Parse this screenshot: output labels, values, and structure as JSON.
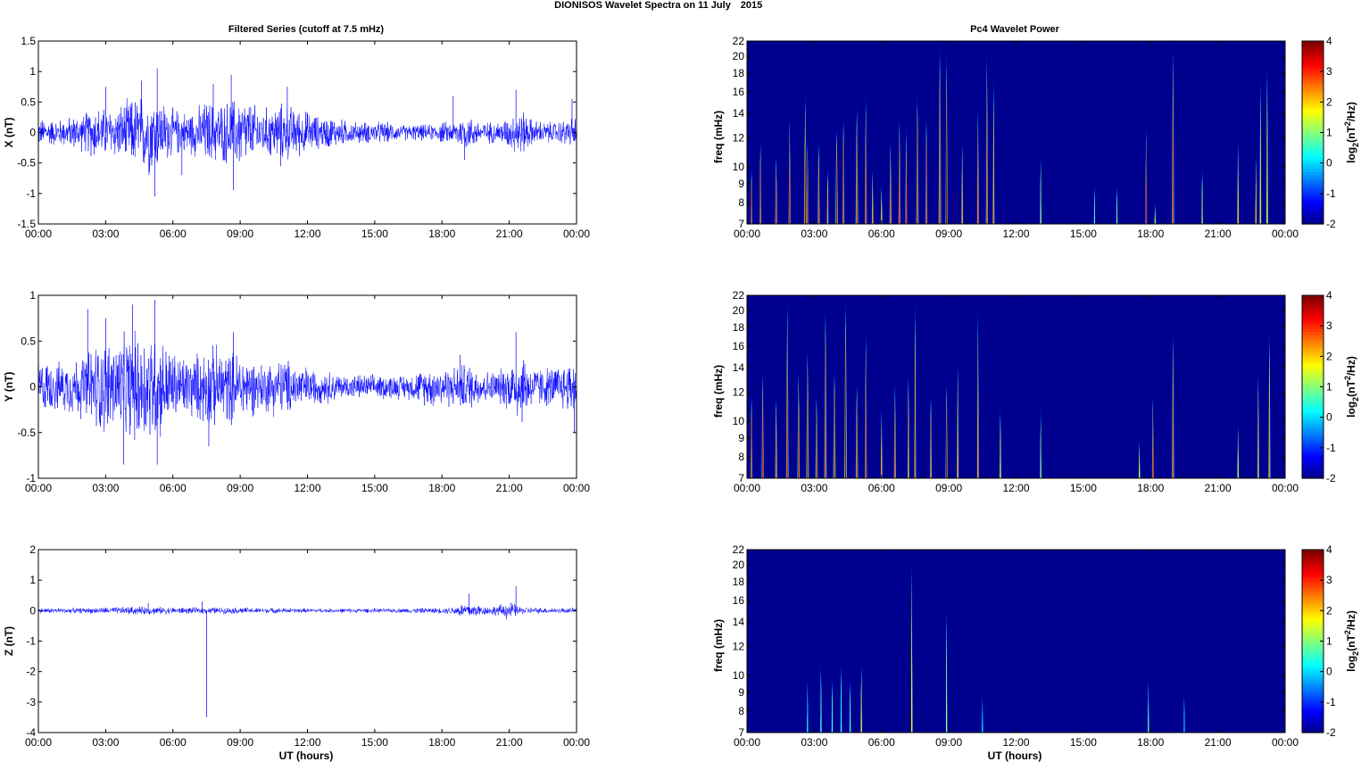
{
  "figure": {
    "title_main": "DIONISOS Wavelet Spectra on 11 July",
    "title_year": "2015",
    "left_title": "Filtered Series (cutoff at 7.5 mHz)",
    "right_title": "Pc4 Wavelet Power",
    "xlabel": "UT (hours)"
  },
  "colors": {
    "trace": "#0000ff",
    "background": "#00008f",
    "axes": "#000000"
  },
  "chart_data": [
    {
      "type": "line",
      "name": "X",
      "ylabel": "X (nT)",
      "xticks": [
        "00:00",
        "03:00",
        "06:00",
        "09:00",
        "12:00",
        "15:00",
        "18:00",
        "21:00",
        "00:00"
      ],
      "xlim_hours": [
        0,
        24
      ],
      "ylim": [
        -1.5,
        1.5
      ],
      "yticks": [
        "1.5",
        "1",
        "0.5",
        "0",
        "-0.5",
        "-1",
        "-1.5"
      ],
      "ytick_values": [
        1.5,
        1,
        0.5,
        0,
        -0.5,
        -1,
        -1.5
      ],
      "envelope_hours": [
        0,
        0.5,
        1,
        1.5,
        2,
        2.5,
        3,
        3.5,
        4,
        4.5,
        5,
        5.5,
        6,
        6.5,
        7,
        7.5,
        8,
        8.5,
        9,
        9.5,
        10,
        10.5,
        11,
        11.5,
        12,
        12.5,
        13,
        13.5,
        14,
        14.5,
        15,
        15.5,
        16,
        16.5,
        17,
        17.5,
        18,
        18.5,
        19,
        19.5,
        20,
        20.5,
        21,
        21.5,
        22,
        22.5,
        23,
        23.5,
        24
      ],
      "envelope_nt": [
        0.25,
        0.25,
        0.25,
        0.3,
        0.35,
        0.5,
        0.45,
        0.5,
        0.6,
        0.7,
        0.8,
        0.6,
        0.45,
        0.4,
        0.45,
        0.6,
        0.55,
        0.6,
        0.7,
        0.55,
        0.45,
        0.5,
        0.55,
        0.45,
        0.4,
        0.3,
        0.3,
        0.25,
        0.2,
        0.2,
        0.2,
        0.2,
        0.15,
        0.15,
        0.15,
        0.15,
        0.2,
        0.2,
        0.35,
        0.25,
        0.2,
        0.2,
        0.3,
        0.45,
        0.25,
        0.2,
        0.2,
        0.25,
        0.3
      ],
      "spikes": [
        [
          3.0,
          0.75
        ],
        [
          4.6,
          0.85
        ],
        [
          5.3,
          1.05
        ],
        [
          5.2,
          -1.05
        ],
        [
          6.4,
          -0.7
        ],
        [
          7.8,
          0.8
        ],
        [
          8.7,
          -0.95
        ],
        [
          8.6,
          0.95
        ],
        [
          10.8,
          -0.55
        ],
        [
          11.1,
          0.75
        ],
        [
          18.5,
          0.6
        ],
        [
          19.0,
          -0.45
        ],
        [
          21.3,
          0.7
        ],
        [
          23.8,
          0.55
        ]
      ]
    },
    {
      "type": "line",
      "name": "Y",
      "ylabel": "Y (nT)",
      "xticks": [
        "00:00",
        "03:00",
        "06:00",
        "09:00",
        "12:00",
        "15:00",
        "18:00",
        "21:00",
        "00:00"
      ],
      "xlim_hours": [
        0,
        24
      ],
      "ylim": [
        -1,
        1
      ],
      "yticks": [
        "1",
        "0.5",
        "0",
        "-0.5",
        "-1"
      ],
      "ytick_values": [
        1,
        0.5,
        0,
        -0.5,
        -1
      ],
      "envelope_hours": [
        0,
        0.5,
        1,
        1.5,
        2,
        2.5,
        3,
        3.5,
        4,
        4.5,
        5,
        5.5,
        6,
        6.5,
        7,
        7.5,
        8,
        8.5,
        9,
        9.5,
        10,
        10.5,
        11,
        11.5,
        12,
        12.5,
        13,
        13.5,
        14,
        14.5,
        15,
        15.5,
        16,
        16.5,
        17,
        17.5,
        18,
        18.5,
        19,
        19.5,
        20,
        20.5,
        21,
        21.5,
        22,
        22.5,
        23,
        23.5,
        24
      ],
      "envelope_nt": [
        0.35,
        0.3,
        0.3,
        0.35,
        0.4,
        0.55,
        0.6,
        0.6,
        0.65,
        0.7,
        0.75,
        0.6,
        0.45,
        0.4,
        0.4,
        0.5,
        0.5,
        0.45,
        0.45,
        0.35,
        0.3,
        0.35,
        0.35,
        0.3,
        0.25,
        0.2,
        0.2,
        0.15,
        0.15,
        0.15,
        0.15,
        0.15,
        0.15,
        0.15,
        0.2,
        0.25,
        0.25,
        0.25,
        0.3,
        0.25,
        0.2,
        0.2,
        0.3,
        0.5,
        0.25,
        0.25,
        0.25,
        0.3,
        0.4
      ],
      "spikes": [
        [
          2.2,
          0.85
        ],
        [
          3.0,
          0.75
        ],
        [
          3.8,
          -0.85
        ],
        [
          4.2,
          0.9
        ],
        [
          5.2,
          0.95
        ],
        [
          5.3,
          -0.85
        ],
        [
          7.6,
          -0.65
        ],
        [
          8.7,
          0.6
        ],
        [
          18.8,
          0.35
        ],
        [
          21.3,
          0.6
        ],
        [
          23.9,
          -0.5
        ]
      ]
    },
    {
      "type": "line",
      "name": "Z",
      "ylabel": "Z (nT)",
      "xticks": [
        "00:00",
        "03:00",
        "06:00",
        "09:00",
        "12:00",
        "15:00",
        "18:00",
        "21:00",
        "00:00"
      ],
      "xlim_hours": [
        0,
        24
      ],
      "ylim": [
        -4,
        2
      ],
      "yticks": [
        "2",
        "1",
        "0",
        "-1",
        "-2",
        "-3",
        "-4"
      ],
      "ytick_values": [
        2,
        1,
        0,
        -1,
        -2,
        -3,
        -4
      ],
      "envelope_hours": [
        0,
        1,
        2,
        3,
        4,
        5,
        6,
        7,
        8,
        9,
        10,
        11,
        12,
        13,
        14,
        15,
        16,
        17,
        18,
        18.5,
        19,
        19.5,
        20,
        20.5,
        21,
        21.5,
        22,
        23,
        24
      ],
      "envelope_nt": [
        0.1,
        0.1,
        0.1,
        0.12,
        0.15,
        0.15,
        0.12,
        0.12,
        0.12,
        0.12,
        0.1,
        0.1,
        0.08,
        0.08,
        0.08,
        0.08,
        0.08,
        0.1,
        0.1,
        0.15,
        0.3,
        0.25,
        0.15,
        0.2,
        0.35,
        0.15,
        0.12,
        0.1,
        0.1
      ],
      "spikes": [
        [
          7.5,
          -3.5
        ],
        [
          19.2,
          0.55
        ],
        [
          21.3,
          0.8
        ],
        [
          4.9,
          0.25
        ],
        [
          7.3,
          0.3
        ]
      ]
    },
    {
      "type": "heatmap",
      "name": "X wavelet power",
      "ylabel": "freq (mHz)",
      "colorbar_label": "log2(nT^2/Hz)",
      "xticks": [
        "00:00",
        "03:00",
        "06:00",
        "09:00",
        "12:00",
        "15:00",
        "18:00",
        "21:00",
        "00:00"
      ],
      "xlim_hours": [
        0,
        24
      ],
      "yticks": [
        "22",
        "20",
        "18",
        "16",
        "14",
        "12",
        "10",
        "9",
        "8",
        "7"
      ],
      "ytick_values": [
        22,
        20,
        18,
        16,
        14,
        12,
        10,
        9,
        8,
        7
      ],
      "ylim_mhz": [
        7,
        22
      ],
      "yscale": "log",
      "clim": [
        -2,
        4
      ],
      "cticks": [
        "4",
        "3",
        "2",
        "1",
        "0",
        "-1",
        "-2"
      ],
      "colormap": "jet",
      "bursts": [
        [
          0.2,
          0.1,
          3.3,
          10
        ],
        [
          0.6,
          0.1,
          3,
          12
        ],
        [
          1.3,
          0.12,
          3.2,
          11
        ],
        [
          1.9,
          0.12,
          3.4,
          14
        ],
        [
          2.6,
          0.15,
          4,
          16
        ],
        [
          2.7,
          0.1,
          3.5,
          12
        ],
        [
          3.2,
          0.12,
          3,
          12
        ],
        [
          3.6,
          0.1,
          2.5,
          10
        ],
        [
          4.0,
          0.14,
          3.8,
          13
        ],
        [
          4.3,
          0.12,
          3.5,
          14
        ],
        [
          4.9,
          0.15,
          3.6,
          15
        ],
        [
          5.3,
          0.12,
          3.3,
          16
        ],
        [
          5.6,
          0.1,
          2.5,
          10
        ],
        [
          6.0,
          0.1,
          2.2,
          9
        ],
        [
          6.4,
          0.12,
          3,
          12
        ],
        [
          6.8,
          0.12,
          3.2,
          14
        ],
        [
          7.1,
          0.1,
          3,
          13
        ],
        [
          7.6,
          0.14,
          3.8,
          16
        ],
        [
          8.0,
          0.12,
          3.5,
          14
        ],
        [
          8.6,
          0.15,
          3.5,
          22
        ],
        [
          8.9,
          0.12,
          3.8,
          21
        ],
        [
          9.6,
          0.1,
          2.5,
          12
        ],
        [
          10.3,
          0.1,
          2.7,
          15
        ],
        [
          10.7,
          0.12,
          3,
          21
        ],
        [
          11.0,
          0.1,
          2.5,
          18
        ],
        [
          13.1,
          0.08,
          1.2,
          11
        ],
        [
          15.5,
          0.08,
          0.8,
          9
        ],
        [
          16.5,
          0.08,
          1.0,
          9
        ],
        [
          17.8,
          0.1,
          3.5,
          13
        ],
        [
          18.2,
          0.08,
          1.5,
          8
        ],
        [
          19.0,
          0.12,
          3,
          22
        ],
        [
          20.3,
          0.08,
          1.5,
          10
        ],
        [
          21.9,
          0.1,
          2.2,
          12
        ],
        [
          22.7,
          0.08,
          2.3,
          11
        ],
        [
          22.9,
          0.1,
          2.0,
          18
        ],
        [
          23.2,
          0.1,
          1.8,
          20
        ]
      ]
    },
    {
      "type": "heatmap",
      "name": "Y wavelet power",
      "ylabel": "freq (mHz)",
      "colorbar_label": "log2(nT^2/Hz)",
      "xticks": [
        "00:00",
        "03:00",
        "06:00",
        "09:00",
        "12:00",
        "15:00",
        "18:00",
        "21:00",
        "00:00"
      ],
      "xlim_hours": [
        0,
        24
      ],
      "yticks": [
        "22",
        "20",
        "18",
        "16",
        "14",
        "12",
        "10",
        "9",
        "8",
        "7"
      ],
      "ytick_values": [
        22,
        20,
        18,
        16,
        14,
        12,
        10,
        9,
        8,
        7
      ],
      "ylim_mhz": [
        7,
        22
      ],
      "yscale": "log",
      "clim": [
        -2,
        4
      ],
      "cticks": [
        "4",
        "3",
        "2",
        "1",
        "0",
        "-1",
        "-2"
      ],
      "colormap": "jet",
      "bursts": [
        [
          0.2,
          0.12,
          3.6,
          12
        ],
        [
          0.7,
          0.12,
          3.2,
          14
        ],
        [
          1.3,
          0.12,
          2.8,
          12
        ],
        [
          1.8,
          0.14,
          3.6,
          22
        ],
        [
          2.3,
          0.14,
          3.8,
          14
        ],
        [
          2.7,
          0.15,
          4,
          16
        ],
        [
          3.1,
          0.14,
          3.8,
          12
        ],
        [
          3.5,
          0.14,
          3.5,
          21
        ],
        [
          3.9,
          0.15,
          4,
          14
        ],
        [
          4.4,
          0.14,
          3.8,
          22
        ],
        [
          4.9,
          0.14,
          3.5,
          13
        ],
        [
          5.3,
          0.12,
          3.5,
          18
        ],
        [
          6.0,
          0.1,
          2.5,
          11
        ],
        [
          6.6,
          0.12,
          3,
          13
        ],
        [
          7.2,
          0.1,
          2.5,
          14
        ],
        [
          7.5,
          0.1,
          2.6,
          22
        ],
        [
          8.2,
          0.12,
          3,
          12
        ],
        [
          8.9,
          0.12,
          3.8,
          13
        ],
        [
          9.4,
          0.1,
          2.3,
          15
        ],
        [
          10.3,
          0.1,
          2.5,
          21
        ],
        [
          11.3,
          0.1,
          2.0,
          11
        ],
        [
          13.1,
          0.08,
          1.2,
          11
        ],
        [
          17.5,
          0.08,
          1.6,
          9
        ],
        [
          18.1,
          0.1,
          3.0,
          12
        ],
        [
          19.0,
          0.12,
          2.8,
          18
        ],
        [
          21.9,
          0.08,
          1.5,
          10
        ],
        [
          22.8,
          0.1,
          2.3,
          14
        ],
        [
          23.3,
          0.12,
          2.5,
          18
        ]
      ]
    },
    {
      "type": "heatmap",
      "name": "Z wavelet power",
      "ylabel": "freq (mHz)",
      "colorbar_label": "log2(nT^2/Hz)",
      "xticks": [
        "00:00",
        "03:00",
        "06:00",
        "09:00",
        "12:00",
        "15:00",
        "18:00",
        "21:00",
        "00:00"
      ],
      "xlim_hours": [
        0,
        24
      ],
      "yticks": [
        "22",
        "20",
        "18",
        "16",
        "14",
        "12",
        "10",
        "9",
        "8",
        "7"
      ],
      "ytick_values": [
        22,
        20,
        18,
        16,
        14,
        12,
        10,
        9,
        8,
        7
      ],
      "ylim_mhz": [
        7,
        22
      ],
      "yscale": "log",
      "clim": [
        -2,
        4
      ],
      "cticks": [
        "4",
        "3",
        "2",
        "1",
        "0",
        "-1",
        "-2"
      ],
      "colormap": "jet",
      "bursts": [
        [
          2.7,
          0.08,
          0.4,
          10
        ],
        [
          3.3,
          0.1,
          0.8,
          11
        ],
        [
          3.8,
          0.1,
          0.8,
          10
        ],
        [
          4.2,
          0.1,
          0.7,
          11
        ],
        [
          4.6,
          0.1,
          0.8,
          10
        ],
        [
          5.1,
          0.08,
          1.8,
          11
        ],
        [
          7.35,
          0.04,
          1.8,
          22
        ],
        [
          8.9,
          0.08,
          1.2,
          16
        ],
        [
          10.5,
          0.08,
          0.3,
          9
        ],
        [
          17.9,
          0.08,
          0.8,
          10
        ],
        [
          19.5,
          0.06,
          0.3,
          9
        ]
      ]
    }
  ]
}
